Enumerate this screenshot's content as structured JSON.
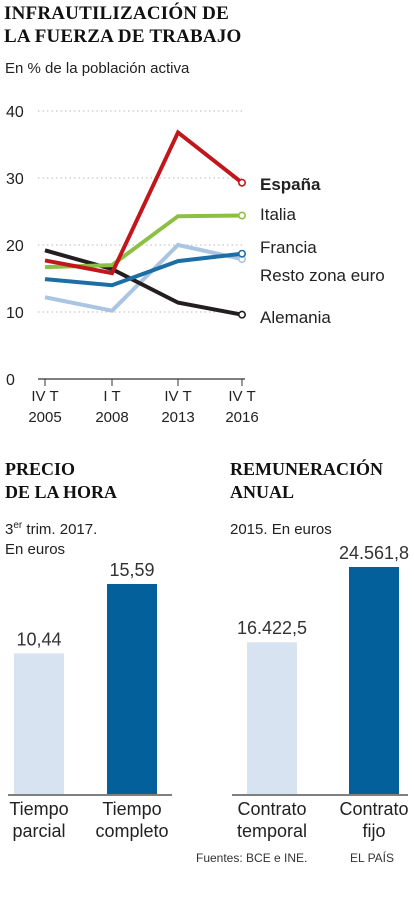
{
  "line_chart": {
    "title_line1": "INFRAUTILIZACIÓN DE",
    "title_line2": "LA FUERZA DE TRABAJO",
    "subtitle": "En % de la población activa"
  },
  "price_panel": {
    "title_line1": "PRECIO",
    "title_line2": "DE LA HORA",
    "note_prefix": "3",
    "note_sup": "er",
    "note_rest": " trim. 2017.",
    "note_line2": "En euros"
  },
  "pay_panel": {
    "title_line1": "REMUNERACIÓN",
    "title_line2": "ANUAL",
    "note": "2015. En euros"
  },
  "footer": {
    "source": "Fuentes: BCE e INE.",
    "brand": "EL PAÍS"
  },
  "chart_data": [
    {
      "type": "line",
      "title": "INFRAUTILIZACIÓN DE LA FUERZA DE TRABAJO",
      "subtitle": "En % de la población activa",
      "x": [
        [
          "IV T",
          "2005"
        ],
        [
          "I T",
          "2008"
        ],
        [
          "IV T",
          "2013"
        ],
        [
          "IV T",
          "2016"
        ]
      ],
      "ylim": [
        0,
        40
      ],
      "yticks": [
        0,
        10,
        20,
        30,
        40
      ],
      "grid": true,
      "legend": "end-of-line labels",
      "series": [
        {
          "name": "España",
          "color": "#c0171c",
          "bold": true,
          "values": [
            17.7,
            15.8,
            36.8,
            29.3
          ]
        },
        {
          "name": "Italia",
          "color": "#8cc043",
          "bold": false,
          "values": [
            16.7,
            17.0,
            24.3,
            24.4
          ]
        },
        {
          "name": "Francia",
          "color": "#1c6ea4",
          "bold": false,
          "values": [
            14.9,
            14.0,
            17.6,
            18.7
          ]
        },
        {
          "name": "Resto zona euro",
          "color": "#a9c5e2",
          "bold": false,
          "values": [
            12.2,
            10.2,
            20.0,
            17.9
          ]
        },
        {
          "name": "Alemania",
          "color": "#231f20",
          "bold": false,
          "values": [
            19.2,
            16.4,
            11.4,
            9.6
          ]
        }
      ]
    },
    {
      "type": "bar",
      "title": "PRECIO DE LA HORA",
      "categories": [
        [
          "Tiempo",
          "parcial"
        ],
        [
          "Tiempo",
          "completo"
        ]
      ],
      "values": [
        10.44,
        15.59
      ],
      "value_labels": [
        "10,44",
        "15,59"
      ],
      "colors": [
        "#d7e3f1",
        "#03609a"
      ],
      "ylim": [
        0,
        18.5
      ]
    },
    {
      "type": "bar",
      "title": "REMUNERACIÓN ANUAL",
      "categories": [
        [
          "Contrato",
          "temporal"
        ],
        [
          "Contrato",
          "fijo"
        ]
      ],
      "values": [
        16422.5,
        24561.8
      ],
      "value_labels": [
        "16.422,5",
        "24.561,8"
      ],
      "colors": [
        "#d7e3f1",
        "#03609a"
      ],
      "ylim": [
        0,
        31700
      ]
    }
  ]
}
